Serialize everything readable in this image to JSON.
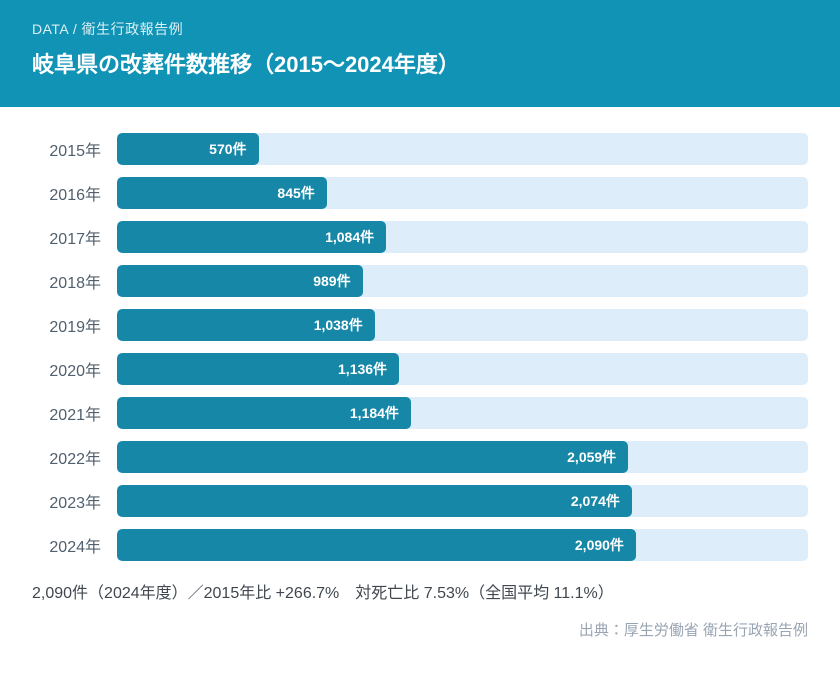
{
  "header": {
    "eyebrow": "DATA / 衛生行政報告例",
    "title": "岐阜県の改葬件数推移（2015～2024年度）"
  },
  "chart_data": {
    "type": "bar",
    "orientation": "horizontal",
    "title": "岐阜県の改葬件数推移（2015～2024年度）",
    "categories": [
      "2015年",
      "2016年",
      "2017年",
      "2018年",
      "2019年",
      "2020年",
      "2021年",
      "2022年",
      "2023年",
      "2024年"
    ],
    "values": [
      570,
      845,
      1084,
      989,
      1038,
      1136,
      1184,
      2059,
      2074,
      2090
    ],
    "value_labels": [
      "570件",
      "845件",
      "1,084件",
      "989件",
      "1,038件",
      "1,136件",
      "1,184件",
      "2,059件",
      "2,074件",
      "2,090件"
    ],
    "unit": "件",
    "xlim": [
      0,
      2783
    ],
    "grid": false,
    "legend": false,
    "bar_color": "#1787a8",
    "track_color": "#ddeefa"
  },
  "footer": {
    "summary": "2,090件（2024年度）／2015年比 +266.7%　対死亡比 7.53%（全国平均 11.1%）",
    "source": "出典：厚生労働省 衛生行政報告例"
  },
  "colors": {
    "header_bg": "#1093b5",
    "bar": "#1787a8",
    "track": "#ddeefa",
    "year_label": "#51606e",
    "summary_text": "#40474f",
    "source_text": "#9aa5b3"
  }
}
